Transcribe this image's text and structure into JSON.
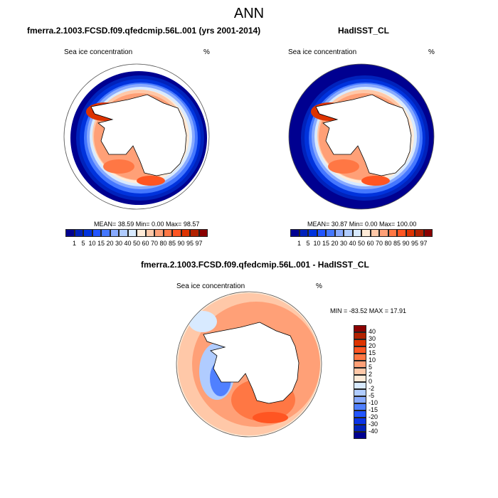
{
  "title": "ANN",
  "panels": [
    {
      "title": "fmerra.2.1003.FCSD.f09.qfedcmip.56L.001 (yrs 2001-2014)",
      "left_label": "Sea ice concentration",
      "right_label": "%",
      "stats": "MEAN=  38.59  Min=   0.00  Max=  98.57"
    },
    {
      "title": "HadISST_CL",
      "left_label": "Sea ice concentration",
      "right_label": "%",
      "stats": "MEAN=  30.87  Min=   0.00  Max= 100.00"
    },
    {
      "title": "fmerra.2.1003.FCSD.f09.qfedcmip.56L.001 - HadISST_CL",
      "left_label": "Sea ice concentration",
      "right_label": "%",
      "stats": "MIN = -83.52 MAX =  17.91"
    }
  ],
  "colorbar": {
    "labels": [
      "1",
      "5",
      "10",
      "15",
      "20",
      "30",
      "40",
      "50",
      "60",
      "70",
      "80",
      "85",
      "90",
      "95",
      "97"
    ],
    "colors": [
      "#000090",
      "#0022bb",
      "#0033dd",
      "#2255ff",
      "#4477ff",
      "#88aaff",
      "#b0ccff",
      "#d8eaff",
      "#ffebd8",
      "#ffc8a8",
      "#ffa077",
      "#ff7744",
      "#ff5522",
      "#dd3300",
      "#b22200",
      "#8b0000"
    ]
  },
  "diff_colorbar": {
    "labels": [
      "40",
      "30",
      "20",
      "15",
      "10",
      "5",
      "2",
      "0",
      "-2",
      "-5",
      "-10",
      "-15",
      "-20",
      "-30",
      "-40"
    ],
    "colors": [
      "#8b0000",
      "#b22200",
      "#dd3300",
      "#ff5522",
      "#ff7744",
      "#ffa077",
      "#ffc8a8",
      "#ffebd8",
      "#d8eaff",
      "#b0ccff",
      "#88aaff",
      "#5080ff",
      "#2255ff",
      "#0a33e6",
      "#0022bb",
      "#000090"
    ]
  }
}
